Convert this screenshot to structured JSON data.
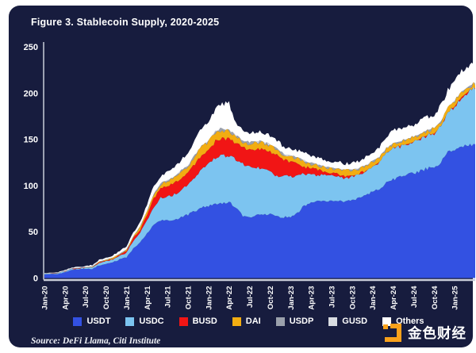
{
  "figure": {
    "title": "Figure 3. Stablecoin Supply, 2020-2025",
    "source": "Source: DeFi Llama, Citi Institute",
    "watermark": {
      "text": "金色财经",
      "icon_color": "#f9a11b"
    }
  },
  "colors": {
    "card_background": "#171c3e",
    "text": "#ffffff",
    "axis_line": "#c9cdd9"
  },
  "chart_data": {
    "type": "area",
    "stacked": true,
    "title": "Figure 3. Stablecoin Supply, 2020-2025",
    "xlabel": "",
    "ylabel": "",
    "ylim": [
      0,
      250
    ],
    "yticks": [
      0,
      50,
      100,
      150,
      200,
      250
    ],
    "grid": false,
    "legend_position": "bottom",
    "x_tick_every": 3,
    "x": [
      "Jan-20",
      "Feb-20",
      "Mar-20",
      "Apr-20",
      "May-20",
      "Jun-20",
      "Jul-20",
      "Aug-20",
      "Sep-20",
      "Oct-20",
      "Nov-20",
      "Dec-20",
      "Jan-21",
      "Feb-21",
      "Mar-21",
      "Apr-21",
      "May-21",
      "Jun-21",
      "Jul-21",
      "Aug-21",
      "Sep-21",
      "Oct-21",
      "Nov-21",
      "Dec-21",
      "Jan-22",
      "Feb-22",
      "Mar-22",
      "Apr-22",
      "May-22",
      "Jun-22",
      "Jul-22",
      "Aug-22",
      "Sep-22",
      "Oct-22",
      "Nov-22",
      "Dec-22",
      "Jan-23",
      "Feb-23",
      "Mar-23",
      "Apr-23",
      "May-23",
      "Jun-23",
      "Jul-23",
      "Aug-23",
      "Sep-23",
      "Oct-23",
      "Nov-23",
      "Dec-23",
      "Jan-24",
      "Feb-24",
      "Mar-24",
      "Apr-24",
      "May-24",
      "Jun-24",
      "Jul-24",
      "Aug-24",
      "Sep-24",
      "Oct-24",
      "Nov-24",
      "Dec-24",
      "Jan-25",
      "Feb-25",
      "Mar-25",
      "Apr-25"
    ],
    "series": [
      {
        "name": "USDT",
        "color": "#3351e2",
        "values": [
          4.1,
          4.3,
          4.6,
          6.4,
          8.8,
          9.2,
          9.9,
          10.0,
          13.8,
          15.3,
          16.8,
          20.0,
          22.5,
          32.0,
          38.0,
          48.0,
          57.5,
          62.0,
          62.0,
          63.0,
          66.0,
          68.5,
          72.5,
          76.0,
          78.0,
          79.5,
          81.0,
          82.5,
          76.0,
          67.5,
          66.0,
          67.5,
          68.5,
          69.0,
          66.5,
          66.0,
          66.5,
          70.0,
          78.5,
          81.0,
          82.5,
          83.0,
          83.5,
          83.0,
          83.0,
          84.5,
          86.5,
          90.0,
          93.5,
          97.0,
          102.5,
          106.5,
          109.5,
          112.0,
          113.5,
          116.0,
          118.5,
          120.0,
          125.0,
          136.0,
          138.5,
          141.5,
          143.5,
          144.5
        ]
      },
      {
        "name": "USDC",
        "color": "#7cc4f0",
        "values": [
          0.5,
          0.6,
          0.7,
          0.8,
          1.0,
          1.1,
          1.1,
          1.4,
          2.5,
          2.8,
          3.3,
          3.9,
          5.0,
          8.0,
          11.0,
          14.5,
          20.0,
          24.5,
          26.0,
          27.5,
          29.5,
          32.0,
          36.0,
          42.0,
          45.0,
          51.0,
          51.5,
          49.5,
          52.0,
          55.5,
          54.5,
          52.5,
          50.0,
          46.0,
          43.5,
          44.5,
          43.0,
          41.5,
          33.5,
          30.5,
          29.0,
          27.5,
          26.5,
          26.0,
          25.0,
          24.5,
          24.5,
          24.5,
          26.5,
          28.0,
          32.0,
          33.5,
          32.5,
          32.5,
          33.5,
          34.5,
          35.5,
          36.0,
          39.0,
          42.0,
          47.0,
          54.0,
          58.0,
          60.5
        ]
      },
      {
        "name": "BUSD",
        "color": "#f11515",
        "values": [
          0.0,
          0.0,
          0.1,
          0.2,
          0.2,
          0.2,
          0.3,
          0.4,
          0.5,
          0.6,
          0.7,
          1.0,
          1.6,
          2.6,
          3.6,
          5.5,
          8.5,
          10.0,
          11.5,
          12.2,
          13.0,
          13.5,
          14.5,
          14.6,
          14.7,
          17.5,
          17.8,
          17.7,
          18.5,
          17.5,
          17.8,
          19.5,
          20.5,
          21.7,
          22.8,
          17.0,
          16.0,
          12.5,
          8.0,
          6.8,
          5.5,
          4.3,
          3.6,
          3.1,
          2.6,
          2.1,
          1.8,
          1.1,
          0.6,
          0.3,
          0.1,
          0.1,
          0.1,
          0.1,
          0.1,
          0.1,
          0.1,
          0.1,
          0.1,
          0.1,
          0.0,
          0.0,
          0.0,
          0.0
        ]
      },
      {
        "name": "DAI",
        "color": "#f2ad12",
        "values": [
          0.1,
          0.1,
          0.1,
          0.1,
          0.1,
          0.2,
          0.2,
          0.4,
          0.8,
          0.9,
          1.0,
          1.1,
          1.4,
          2.0,
          2.7,
          3.5,
          4.4,
          4.8,
          5.3,
          5.7,
          6.3,
          6.5,
          8.5,
          9.0,
          9.2,
          9.9,
          9.6,
          8.8,
          6.8,
          6.3,
          6.9,
          7.0,
          6.9,
          6.5,
          5.8,
          5.1,
          5.2,
          5.1,
          5.3,
          4.9,
          4.7,
          4.5,
          4.3,
          5.3,
          5.5,
          5.3,
          5.2,
          5.3,
          5.3,
          4.9,
          4.7,
          5.1,
          5.2,
          5.1,
          5.1,
          5.2,
          5.3,
          5.6,
          5.4,
          5.3,
          5.3,
          5.4,
          5.4,
          5.4
        ]
      },
      {
        "name": "USDP",
        "color": "#9ba1ac",
        "values": [
          0.2,
          0.2,
          0.2,
          0.2,
          0.25,
          0.25,
          0.25,
          0.25,
          0.25,
          0.25,
          0.25,
          0.25,
          0.3,
          0.35,
          0.4,
          0.5,
          0.6,
          0.7,
          0.8,
          0.85,
          0.9,
          0.9,
          0.95,
          0.95,
          0.95,
          1.0,
          1.0,
          0.95,
          0.9,
          0.9,
          0.9,
          0.95,
          0.95,
          0.9,
          0.9,
          0.9,
          0.88,
          0.85,
          0.8,
          0.8,
          0.75,
          0.7,
          0.6,
          0.55,
          0.5,
          0.5,
          0.45,
          0.4,
          0.4,
          0.35,
          0.3,
          0.25,
          0.2,
          0.15,
          0.15,
          0.1,
          0.1,
          0.1,
          0.1,
          0.1,
          0.1,
          0.1,
          0.1,
          0.1
        ]
      },
      {
        "name": "GUSD",
        "color": "#d9dce1",
        "values": [
          0.05,
          0.05,
          0.05,
          0.05,
          0.05,
          0.05,
          0.05,
          0.05,
          0.05,
          0.1,
          0.1,
          0.1,
          0.1,
          0.1,
          0.1,
          0.15,
          0.15,
          0.15,
          0.15,
          0.2,
          0.2,
          0.2,
          0.2,
          0.2,
          0.2,
          0.25,
          0.25,
          0.25,
          0.3,
          0.3,
          0.3,
          0.3,
          0.4,
          0.5,
          0.6,
          0.6,
          0.6,
          0.55,
          0.5,
          0.45,
          0.4,
          0.35,
          0.3,
          0.3,
          0.25,
          0.25,
          0.2,
          0.2,
          0.2,
          0.15,
          0.15,
          0.1,
          0.1,
          0.1,
          0.1,
          0.1,
          0.1,
          0.1,
          0.1,
          0.1,
          0.1,
          0.1,
          0.1,
          0.1
        ]
      },
      {
        "name": "Others",
        "color": "#ffffff",
        "values": [
          0.6,
          0.6,
          0.7,
          0.8,
          0.9,
          1.0,
          1.2,
          1.5,
          1.8,
          2.0,
          2.3,
          2.6,
          3.2,
          4.2,
          5.2,
          6.5,
          8.5,
          8.0,
          8.5,
          9.5,
          11.5,
          13.5,
          16.5,
          19.5,
          21.0,
          23.0,
          27.0,
          29.0,
          14.0,
          11.0,
          10.5,
          10.0,
          10.0,
          9.5,
          9.0,
          8.0,
          7.8,
          7.6,
          8.5,
          8.0,
          7.6,
          7.4,
          7.2,
          7.0,
          6.8,
          7.0,
          8.0,
          9.0,
          9.5,
          11.0,
          13.5,
          14.0,
          13.5,
          13.0,
          13.5,
          14.0,
          14.5,
          15.0,
          17.0,
          19.5,
          21.0,
          22.0,
          21.0,
          24.0
        ]
      }
    ]
  }
}
